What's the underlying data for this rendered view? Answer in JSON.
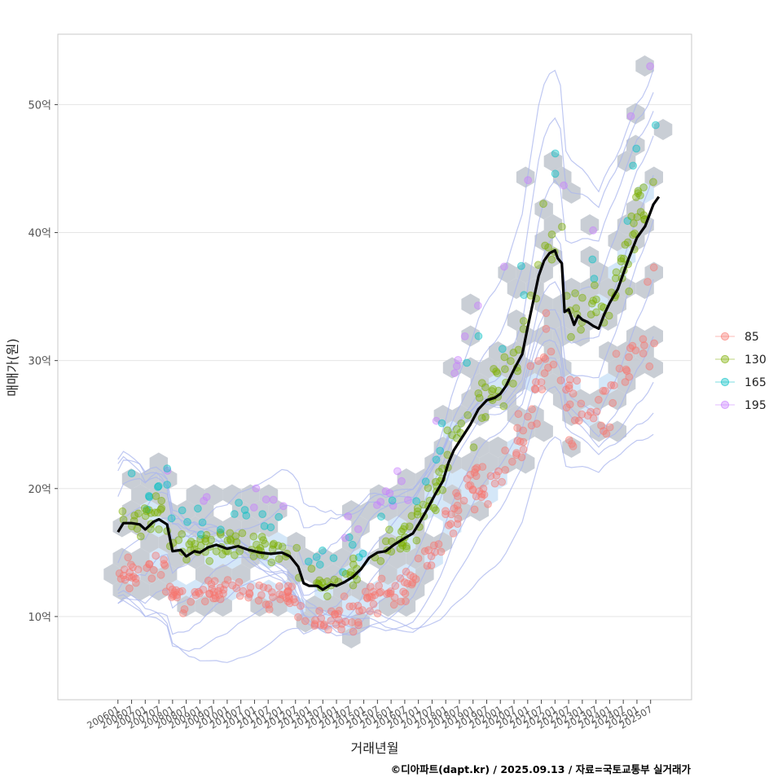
{
  "chart_data": {
    "type": "scatter",
    "title": "",
    "xlabel": "거래년월",
    "ylabel": "매매가(원)",
    "ylim": [
      3.5,
      55.5
    ],
    "y_ticks": [
      {
        "value": 10,
        "label": "10억"
      },
      {
        "value": 20,
        "label": "20억"
      },
      {
        "value": 30,
        "label": "30억"
      },
      {
        "value": 40,
        "label": "40억"
      },
      {
        "value": 50,
        "label": "50억"
      }
    ],
    "x_range": [
      2003.8,
      2027.0
    ],
    "x_ticks": [
      "200601",
      "200607",
      "200701",
      "200707",
      "200801",
      "200807",
      "200901",
      "200907",
      "201001",
      "201007",
      "201101",
      "201107",
      "201201",
      "201207",
      "201301",
      "201307",
      "201401",
      "201407",
      "201501",
      "201507",
      "201601",
      "201607",
      "201701",
      "201707",
      "201801",
      "201807",
      "201901",
      "201907",
      "202001",
      "202007",
      "202101",
      "202107",
      "202201",
      "202207",
      "202301",
      "202307",
      "202401",
      "202407",
      "202501",
      "202507"
    ],
    "legend": {
      "position": "right",
      "entries": [
        {
          "label": "85",
          "color": "#F8766D"
        },
        {
          "label": "130",
          "color": "#7CAE00"
        },
        {
          "label": "165",
          "color": "#00BFC4"
        },
        {
          "label": "195",
          "color": "#C77CFF"
        }
      ]
    },
    "colors": {
      "trend": "#000000",
      "hex": "#c3c9d0",
      "contour": "#aab6ee",
      "grid": "#e5e5e5"
    },
    "trend_line": {
      "name": "median",
      "points": [
        [
          2006.0,
          16.6
        ],
        [
          2006.2,
          17.3
        ],
        [
          2006.5,
          17.3
        ],
        [
          2006.8,
          17.2
        ],
        [
          2007.0,
          16.8
        ],
        [
          2007.3,
          17.4
        ],
        [
          2007.5,
          17.6
        ],
        [
          2007.8,
          17.2
        ],
        [
          2008.0,
          15.1
        ],
        [
          2008.3,
          15.2
        ],
        [
          2008.5,
          14.7
        ],
        [
          2008.8,
          15.1
        ],
        [
          2009.0,
          15.0
        ],
        [
          2009.3,
          15.4
        ],
        [
          2009.6,
          15.6
        ],
        [
          2010.0,
          15.3
        ],
        [
          2010.4,
          15.5
        ],
        [
          2010.8,
          15.2
        ],
        [
          2011.2,
          15.0
        ],
        [
          2011.6,
          14.9
        ],
        [
          2012.0,
          15.0
        ],
        [
          2012.3,
          14.7
        ],
        [
          2012.6,
          13.9
        ],
        [
          2012.8,
          12.6
        ],
        [
          2013.0,
          12.4
        ],
        [
          2013.3,
          12.4
        ],
        [
          2013.5,
          12.1
        ],
        [
          2013.8,
          12.5
        ],
        [
          2014.0,
          12.4
        ],
        [
          2014.3,
          12.7
        ],
        [
          2014.6,
          13.1
        ],
        [
          2014.9,
          13.7
        ],
        [
          2015.2,
          14.6
        ],
        [
          2015.5,
          15.0
        ],
        [
          2015.8,
          15.1
        ],
        [
          2016.1,
          15.6
        ],
        [
          2016.4,
          16.0
        ],
        [
          2016.8,
          16.5
        ],
        [
          2017.0,
          17.2
        ],
        [
          2017.3,
          18.3
        ],
        [
          2017.6,
          19.5
        ],
        [
          2017.9,
          20.6
        ],
        [
          2018.1,
          22.0
        ],
        [
          2018.3,
          23.0
        ],
        [
          2018.6,
          24.0
        ],
        [
          2018.9,
          25.0
        ],
        [
          2019.2,
          26.2
        ],
        [
          2019.5,
          26.9
        ],
        [
          2019.8,
          27.1
        ],
        [
          2020.0,
          27.4
        ],
        [
          2020.2,
          28.0
        ],
        [
          2020.5,
          29.3
        ],
        [
          2020.8,
          30.5
        ],
        [
          2021.0,
          32.6
        ],
        [
          2021.2,
          34.6
        ],
        [
          2021.4,
          36.6
        ],
        [
          2021.6,
          37.8
        ],
        [
          2021.8,
          38.4
        ],
        [
          2022.0,
          38.6
        ],
        [
          2022.1,
          38.0
        ],
        [
          2022.25,
          37.6
        ],
        [
          2022.35,
          33.8
        ],
        [
          2022.5,
          34.0
        ],
        [
          2022.7,
          32.8
        ],
        [
          2022.85,
          33.5
        ],
        [
          2023.0,
          33.2
        ],
        [
          2023.2,
          33.0
        ],
        [
          2023.4,
          32.7
        ],
        [
          2023.6,
          32.5
        ],
        [
          2023.8,
          33.6
        ],
        [
          2024.0,
          34.5
        ],
        [
          2024.3,
          35.6
        ],
        [
          2024.5,
          36.8
        ],
        [
          2024.7,
          38.0
        ],
        [
          2025.0,
          39.6
        ],
        [
          2025.3,
          40.5
        ],
        [
          2025.6,
          42.2
        ],
        [
          2025.8,
          42.8
        ]
      ]
    }
  },
  "caption": "©디아파트(dapt.kr) / 2025.09.13 / 자료=국토교통부 실거래가"
}
